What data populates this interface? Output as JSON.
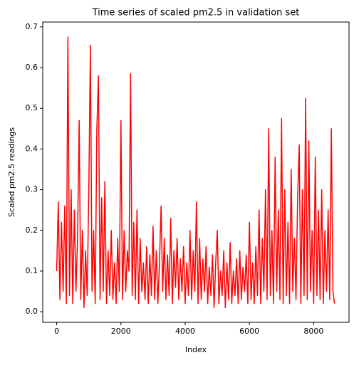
{
  "chart_data": {
    "type": "line",
    "title": "Time series of scaled pm2.5 in validation set",
    "xlabel": "Index",
    "ylabel": "Scaled pm2.5 readings",
    "color": "#ff0000",
    "x": [
      0,
      50,
      100,
      150,
      200,
      250,
      300,
      350,
      400,
      450,
      500,
      550,
      600,
      650,
      700,
      750,
      800,
      850,
      900,
      950,
      1000,
      1050,
      1100,
      1150,
      1200,
      1250,
      1300,
      1350,
      1400,
      1450,
      1500,
      1550,
      1600,
      1650,
      1700,
      1750,
      1800,
      1850,
      1900,
      1950,
      2000,
      2050,
      2100,
      2150,
      2200,
      2250,
      2300,
      2350,
      2400,
      2450,
      2500,
      2550,
      2600,
      2650,
      2700,
      2750,
      2800,
      2850,
      2900,
      2950,
      3000,
      3050,
      3100,
      3150,
      3200,
      3250,
      3300,
      3350,
      3400,
      3450,
      3500,
      3550,
      3600,
      3650,
      3700,
      3750,
      3800,
      3850,
      3900,
      3950,
      4000,
      4050,
      4100,
      4150,
      4200,
      4250,
      4300,
      4350,
      4400,
      4450,
      4500,
      4550,
      4600,
      4650,
      4700,
      4750,
      4800,
      4850,
      4900,
      4950,
      5000,
      5050,
      5100,
      5150,
      5200,
      5250,
      5300,
      5350,
      5400,
      5450,
      5500,
      5550,
      5600,
      5650,
      5700,
      5750,
      5800,
      5850,
      5900,
      5950,
      6000,
      6050,
      6100,
      6150,
      6200,
      6250,
      6300,
      6350,
      6400,
      6450,
      6500,
      6550,
      6600,
      6650,
      6700,
      6750,
      6800,
      6850,
      6900,
      6950,
      7000,
      7050,
      7100,
      7150,
      7200,
      7250,
      7300,
      7350,
      7400,
      7450,
      7500,
      7550,
      7600,
      7650,
      7700,
      7750,
      7800,
      7850,
      7900,
      7950,
      8000,
      8050,
      8100,
      8150,
      8200,
      8250,
      8300,
      8350,
      8400,
      8450,
      8500,
      8550,
      8600,
      8650
    ],
    "values": [
      0.1,
      0.27,
      0.03,
      0.22,
      0.05,
      0.26,
      0.02,
      0.675,
      0.04,
      0.3,
      0.02,
      0.25,
      0.05,
      0.18,
      0.47,
      0.03,
      0.2,
      0.01,
      0.15,
      0.04,
      0.3,
      0.655,
      0.05,
      0.2,
      0.02,
      0.45,
      0.58,
      0.03,
      0.28,
      0.05,
      0.32,
      0.02,
      0.15,
      0.04,
      0.2,
      0.03,
      0.12,
      0.02,
      0.18,
      0.05,
      0.47,
      0.03,
      0.2,
      0.05,
      0.15,
      0.1,
      0.585,
      0.04,
      0.22,
      0.03,
      0.25,
      0.02,
      0.18,
      0.05,
      0.12,
      0.03,
      0.16,
      0.02,
      0.14,
      0.04,
      0.21,
      0.03,
      0.15,
      0.02,
      0.12,
      0.26,
      0.05,
      0.18,
      0.03,
      0.14,
      0.04,
      0.23,
      0.02,
      0.15,
      0.06,
      0.18,
      0.03,
      0.13,
      0.05,
      0.16,
      0.02,
      0.12,
      0.04,
      0.2,
      0.03,
      0.15,
      0.05,
      0.27,
      0.02,
      0.18,
      0.03,
      0.13,
      0.05,
      0.16,
      0.02,
      0.11,
      0.04,
      0.14,
      0.01,
      0.12,
      0.2,
      0.02,
      0.1,
      0.04,
      0.15,
      0.01,
      0.12,
      0.03,
      0.17,
      0.02,
      0.1,
      0.04,
      0.13,
      0.02,
      0.15,
      0.03,
      0.11,
      0.05,
      0.14,
      0.02,
      0.22,
      0.03,
      0.12,
      0.02,
      0.16,
      0.04,
      0.25,
      0.02,
      0.18,
      0.05,
      0.3,
      0.03,
      0.45,
      0.04,
      0.2,
      0.02,
      0.38,
      0.05,
      0.25,
      0.03,
      0.475,
      0.02,
      0.3,
      0.04,
      0.22,
      0.02,
      0.35,
      0.05,
      0.18,
      0.03,
      0.28,
      0.41,
      0.02,
      0.3,
      0.04,
      0.525,
      0.03,
      0.42,
      0.05,
      0.2,
      0.02,
      0.38,
      0.04,
      0.25,
      0.03,
      0.3,
      0.02,
      0.2,
      0.05,
      0.25,
      0.03,
      0.45,
      0.05,
      0.02
    ],
    "xlim": [
      -434,
      9100
    ],
    "ylim": [
      -0.026,
      0.712
    ],
    "xticks": [
      0,
      2000,
      4000,
      6000,
      8000
    ],
    "yticks": [
      {
        "value": 0,
        "label": "0.0"
      },
      0.1,
      0.2,
      0.3,
      0.4,
      0.5,
      0.6,
      0.7
    ]
  }
}
